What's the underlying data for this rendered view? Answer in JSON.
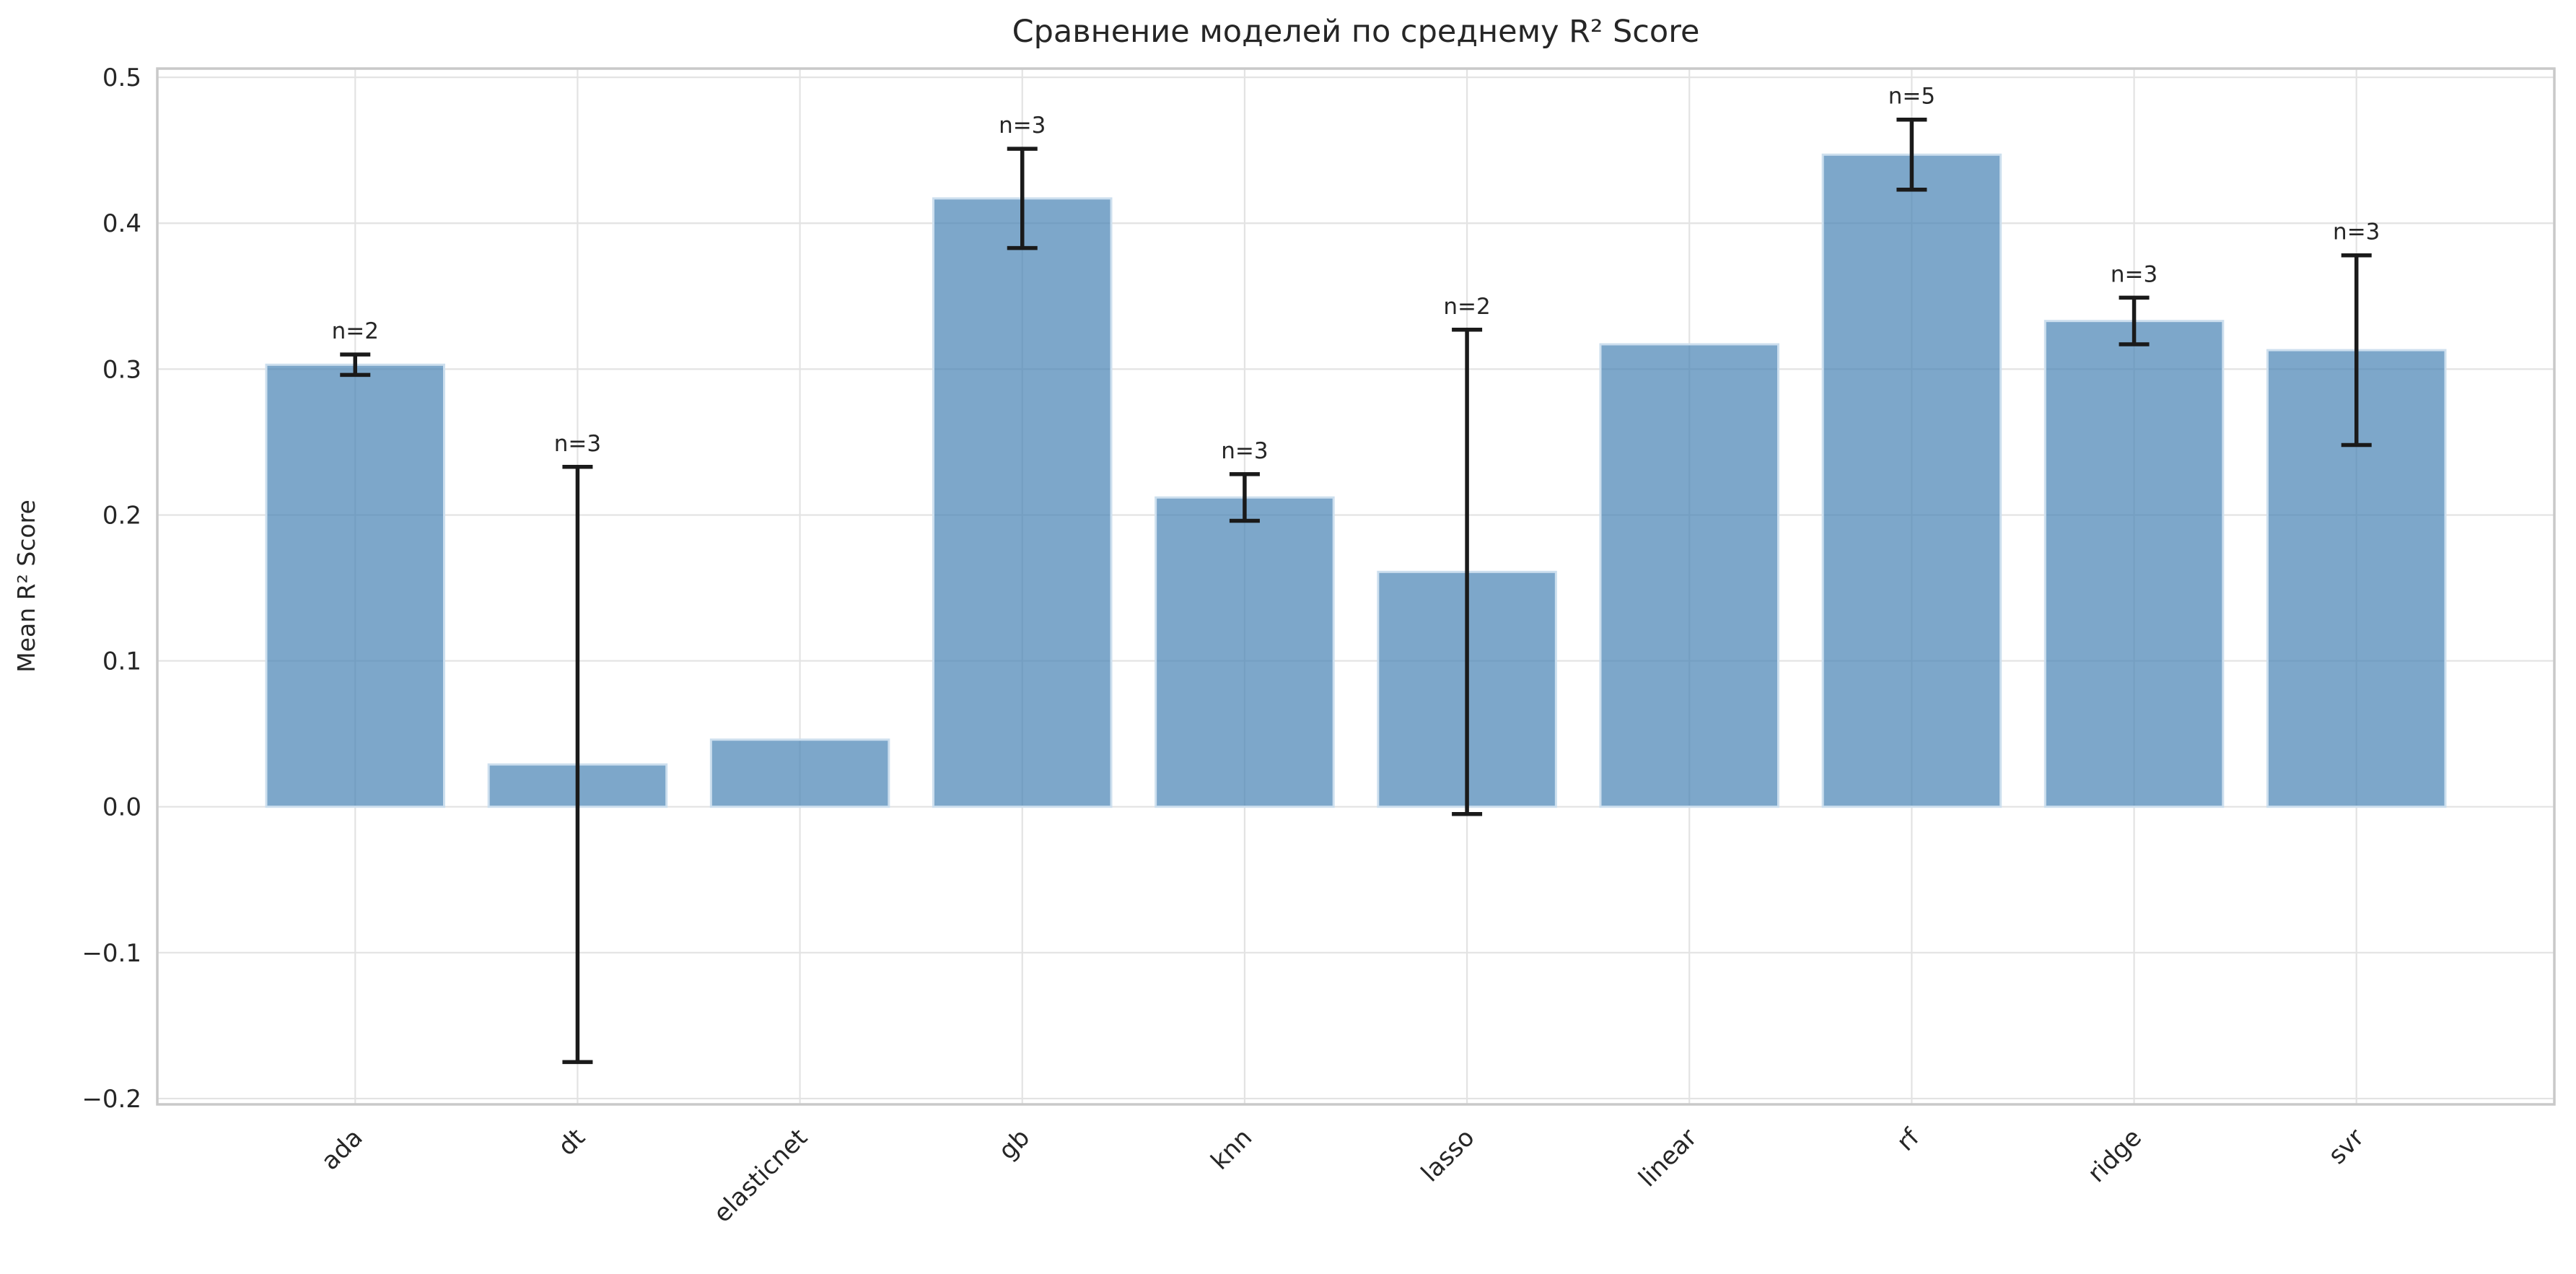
{
  "chart_data": {
    "type": "bar",
    "title": "Сравнение моделей по среднему R² Score",
    "xlabel": "",
    "ylabel": "Mean R² Score",
    "categories": [
      "ada",
      "dt",
      "elasticnet",
      "gb",
      "knn",
      "lasso",
      "linear",
      "rf",
      "ridge",
      "svr"
    ],
    "series": [
      {
        "name": "Mean R² Score",
        "values": [
          0.303,
          0.029,
          0.046,
          0.417,
          0.212,
          0.161,
          0.317,
          0.447,
          0.333,
          0.313
        ],
        "errors": [
          0.007,
          0.204,
          null,
          0.034,
          0.016,
          0.166,
          null,
          0.024,
          0.016,
          0.065
        ]
      }
    ],
    "bar_annotations": [
      "n=2",
      "n=3",
      null,
      "n=3",
      "n=3",
      "n=2",
      null,
      "n=5",
      "n=3",
      "n=3"
    ],
    "yticks": [
      0.5,
      0.4,
      0.3,
      0.2,
      0.1,
      0.0,
      -0.1,
      -0.2
    ],
    "ytick_labels": [
      "0.5",
      "0.4",
      "0.3",
      "0.2",
      "0.1",
      "0.0",
      "−0.1",
      "−0.2"
    ],
    "ylim": [
      -0.204,
      0.506
    ],
    "grid": true,
    "legend": false,
    "colors": {
      "bar_fill": "#4682b4",
      "bar_fill_opacity": "0.7",
      "bar_edge": "#cddfee",
      "error_bar": "#1a1a1a",
      "grid_line": "#e3e3e3",
      "spine": "#c9c9c9",
      "text": "#262626"
    }
  }
}
